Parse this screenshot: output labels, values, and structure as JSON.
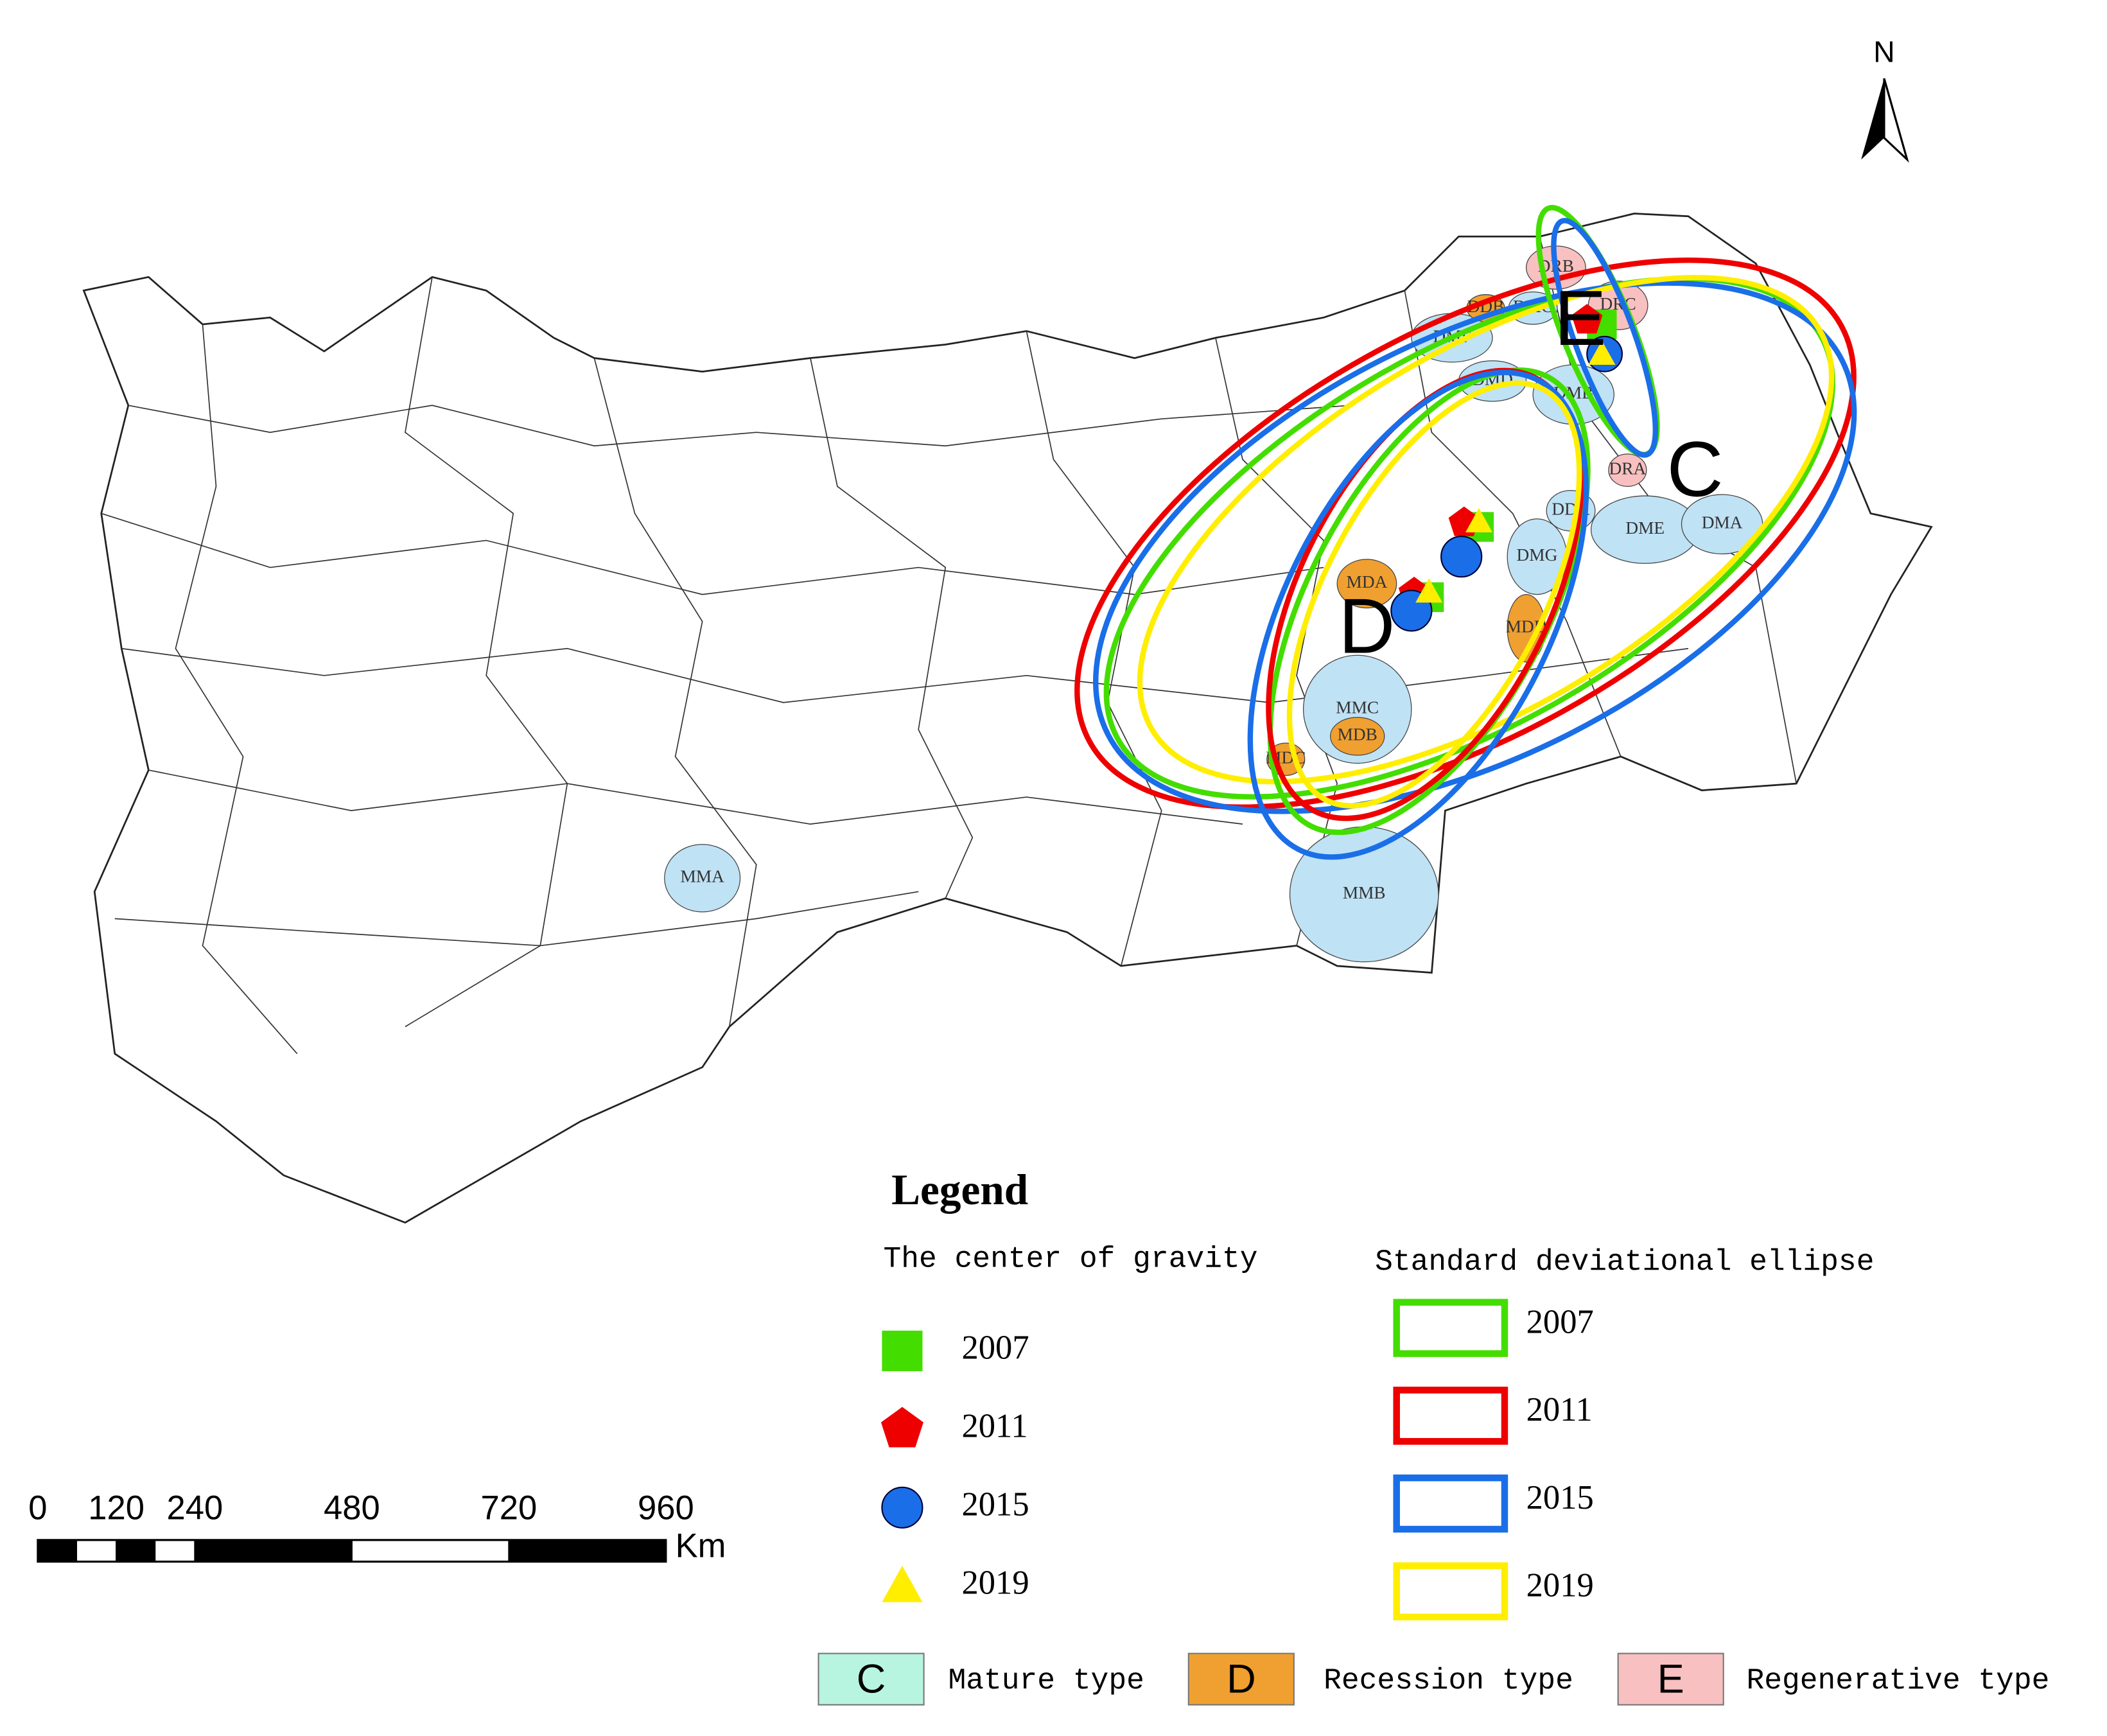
{
  "north": "N",
  "regions": {
    "blue": [
      "DMC",
      "DMF",
      "DMD",
      "DMB",
      "DDA",
      "DME",
      "DMA",
      "DMG",
      "MMC",
      "MMA",
      "MMB"
    ],
    "orange": [
      "DDB",
      "MDA",
      "MDD",
      "MDB",
      "MDC"
    ],
    "pink": [
      "DRB",
      "DRC",
      "DRA"
    ]
  },
  "zones": [
    "E",
    "C",
    "D"
  ],
  "legend": {
    "title": "Legend",
    "gravity_title": "The center of gravity",
    "ellipse_title": "Standard deviational ellipse",
    "years": [
      "2007",
      "2011",
      "2015",
      "2019"
    ],
    "colors": [
      "#44dd00",
      "#ee0000",
      "#1a6ee8",
      "#ffee00"
    ],
    "types": [
      {
        "letter": "C",
        "label": "Mature type",
        "color": "#b8f5e0"
      },
      {
        "letter": "D",
        "label": "Recession type",
        "color": "#f0a030"
      },
      {
        "letter": "E",
        "label": "Regenerative type",
        "color": "#f8c0c0"
      }
    ]
  },
  "scale_bar": {
    "ticks": [
      0,
      120,
      240,
      480,
      720,
      960
    ],
    "unit": "Km"
  }
}
